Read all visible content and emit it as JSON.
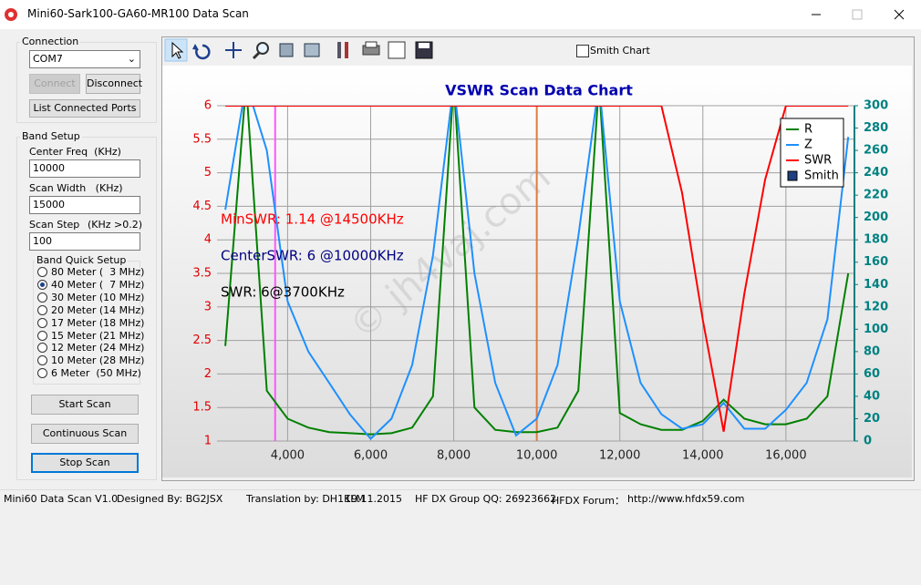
{
  "window": {
    "title": "Mini60-Sark100-GA60-MR100 Data Scan"
  },
  "connection": {
    "label": "Connection",
    "port": "COM7",
    "connect": "Connect",
    "disconnect": "Disconnect",
    "list_ports": "List Connected Ports"
  },
  "band_setup": {
    "label": "Band Setup",
    "center_freq_label": "Center Freq  (KHz)",
    "center_freq": "10000",
    "scan_width_label": "Scan Width   (KHz)",
    "scan_width": "15000",
    "scan_step_label": "Scan Step",
    "scan_step_hint": "(KHz >0.2)",
    "scan_step": "100",
    "quick_setup": {
      "label": "Band Quick Setup",
      "selected": 1,
      "options": [
        "80 Meter (  3 MHz)",
        "40 Meter (  7 MHz)",
        "30 Meter (10 MHz)",
        "20 Meter (14 MHz)",
        "17 Meter (18 MHz)",
        "15 Meter (21 MHz)",
        "12 Meter (24 MHz)",
        "10 Meter (28 MHz)",
        "6 Meter  (50 MHz)"
      ]
    },
    "start_scan": "Start Scan",
    "continuous_scan": "Continuous Scan",
    "stop_scan": "Stop Scan"
  },
  "toolbar": {
    "smith_chart": "Smith Chart"
  },
  "chart_data": {
    "type": "line",
    "title": "VSWR Scan Data Chart",
    "watermark": "© jh4vaj.com",
    "x": [
      2500,
      3000,
      3500,
      4000,
      4500,
      5000,
      5500,
      6000,
      6500,
      7000,
      7500,
      8000,
      8500,
      9000,
      9500,
      10000,
      10500,
      11000,
      11500,
      12000,
      12500,
      13000,
      13500,
      14000,
      14500,
      15000,
      15500,
      16000,
      16500,
      17000,
      17500
    ],
    "series": [
      {
        "name": "R",
        "color": "#008000",
        "axis": "y2",
        "values": [
          85,
          320,
          45,
          20,
          12,
          8,
          7,
          6,
          7,
          12,
          40,
          320,
          30,
          10,
          8,
          8,
          12,
          45,
          320,
          25,
          15,
          10,
          10,
          18,
          37,
          20,
          15,
          15,
          20,
          40,
          150
        ]
      },
      {
        "name": "Z",
        "color": "#1e90ff",
        "axis": "y2",
        "values": [
          207,
          320,
          260,
          125,
          80,
          52,
          24,
          2,
          20,
          68,
          166,
          320,
          150,
          52,
          5,
          20,
          68,
          183,
          320,
          125,
          52,
          24,
          11,
          15,
          34,
          11,
          11,
          28,
          52,
          109,
          272
        ]
      },
      {
        "name": "SWR",
        "color": "#ff0000",
        "values": [
          6,
          6,
          6,
          6,
          6,
          6,
          6,
          6,
          6,
          6,
          6,
          6,
          6,
          6,
          6,
          6,
          6,
          6,
          6,
          6,
          6,
          6,
          4.7,
          2.8,
          1.14,
          3.2,
          4.9,
          6,
          6,
          6,
          6
        ]
      }
    ],
    "smith_legend": {
      "name": "Smith",
      "color": "#1f3f7f"
    },
    "markers": [
      {
        "x": 3700,
        "color": "#ff55ff"
      },
      {
        "x": 10000,
        "color": "#e07a40"
      }
    ],
    "annotations": [
      {
        "text": "MinSWR: 1.14 @14500KHz",
        "color": "#ff0000"
      },
      {
        "text": "CenterSWR: 6 @10000KHz",
        "color": "#000080"
      },
      {
        "text": "SWR: 6@3700KHz",
        "color": "#000000"
      }
    ],
    "xlim": [
      2300,
      17650
    ],
    "xticks": [
      {
        "value": 4000,
        "label": "4,000"
      },
      {
        "value": 6000,
        "label": "6,000"
      },
      {
        "value": 8000,
        "label": "8,000"
      },
      {
        "value": 10000,
        "label": "10,000"
      },
      {
        "value": 12000,
        "label": "12,000"
      },
      {
        "value": 14000,
        "label": "14,000"
      },
      {
        "value": 16000,
        "label": "16,000"
      }
    ],
    "ylim": [
      1,
      6
    ],
    "yticks": [
      1,
      1.5,
      2,
      2.5,
      3,
      3.5,
      4,
      4.5,
      5,
      5.5,
      6
    ],
    "y2lim": [
      0,
      300
    ],
    "y2ticks": [
      0,
      20,
      40,
      60,
      80,
      100,
      120,
      140,
      160,
      180,
      200,
      220,
      240,
      260,
      280,
      300
    ],
    "grid": true,
    "legend": "upper right"
  },
  "status": {
    "version": "Mini60 Data Scan V1.0",
    "designer": "Designed By: BG2JSX",
    "translation": "Translation by: DH1KLM",
    "date": "19.11.2015",
    "qq": "HF DX Group QQ: 26923662",
    "forum": "HFDX Forum：",
    "url": "http://www.hfdx59.com"
  }
}
